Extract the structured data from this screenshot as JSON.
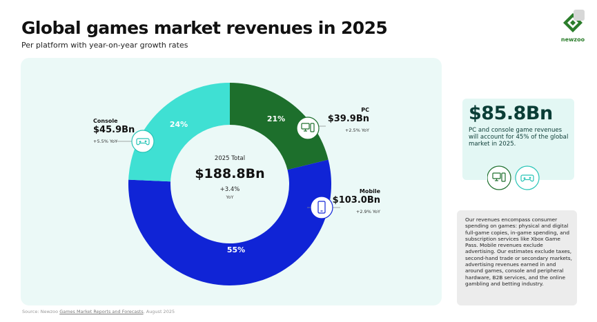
{
  "header": {
    "title": "Global games market revenues in 2025",
    "subtitle": "Per platform with year-on-year growth rates"
  },
  "brand": {
    "name": "newzoo",
    "color": "#2b7d2b"
  },
  "chart_data": {
    "type": "pie",
    "title": "Global games market revenues in 2025",
    "subtitle": "Per platform with year-on-year growth rates",
    "donut": true,
    "center": {
      "label": "2025 Total",
      "value": "$188.8Bn",
      "growth": "+3.4%",
      "growth_label": "YoY"
    },
    "slices": [
      {
        "name": "PC",
        "value": 39.9,
        "percent": 21,
        "percent_label": "21%",
        "revenue": "$39.9Bn",
        "growth": "+2.5% YoY",
        "color": "#1d6f2c",
        "icon": "pc-icon"
      },
      {
        "name": "Mobile",
        "value": 103.0,
        "percent": 55,
        "percent_label": "55%",
        "revenue": "$103.0Bn",
        "growth": "+2.9% YoY",
        "color": "#1024d6",
        "icon": "phone-icon"
      },
      {
        "name": "Console",
        "value": 45.9,
        "percent": 24,
        "percent_label": "24%",
        "revenue": "$45.9Bn",
        "growth": "+5.5% YoY",
        "color": "#3fe0d3",
        "icon": "gamepad-icon"
      }
    ]
  },
  "card": {
    "value": "$85.8Bn",
    "text": "PC and console game revenues will account for 45% of the global market in 2025.",
    "icons": [
      "pc-icon",
      "gamepad-icon"
    ]
  },
  "note": {
    "text": "Our revenues encompass consumer spending on games: physical and digital full-game copies, in-game spending, and subscription services like Xbox Game Pass. Mobile revenues exclude advertising. Our estimates exclude taxes, second-hand trade or secondary markets, advertising revenues earned in and around games, console and peripheral hardware, B2B services, and the online gambling and betting industry."
  },
  "source": {
    "prefix": "Source: Newzoo ",
    "link": "Games Market Reports and Forecasts",
    "suffix": ", August 2025"
  },
  "colors": {
    "panel": "#ebf9f7",
    "card": "#e3f7f4",
    "note": "#ececec"
  }
}
